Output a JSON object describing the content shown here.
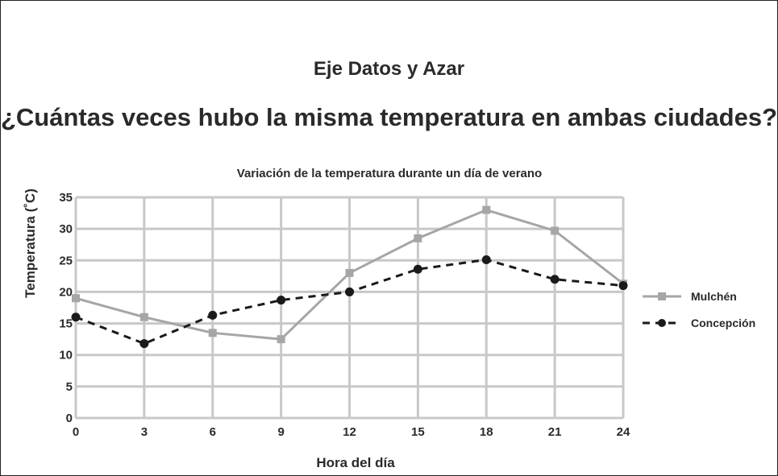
{
  "page": {
    "subtitle": "Eje Datos y Azar",
    "question": "¿Cuántas veces hubo la misma temperatura en ambas ciudades?"
  },
  "chart_data": {
    "type": "line",
    "title": "Variación de la temperatura durante un día de verano",
    "xlabel": "Hora del día",
    "ylabel": "Temperatura (˚C)",
    "x": [
      0,
      3,
      6,
      9,
      12,
      15,
      18,
      21,
      24
    ],
    "xticks": [
      "0",
      "3",
      "6",
      "9",
      "12",
      "15",
      "18",
      "21",
      "24"
    ],
    "yticks": [
      "0",
      "5",
      "10",
      "15",
      "20",
      "25",
      "30",
      "35"
    ],
    "xlim": [
      0,
      24
    ],
    "ylim": [
      0,
      35
    ],
    "grid": true,
    "legend_position": "right",
    "series": [
      {
        "name": "Mulchén",
        "values": [
          19,
          16,
          13.5,
          12.5,
          23,
          28.5,
          33,
          29.7,
          21.3
        ],
        "color": "#a6a6a6",
        "marker": "square",
        "line_style": "solid"
      },
      {
        "name": "Concepción",
        "values": [
          16,
          11.8,
          16.3,
          18.7,
          20,
          23.6,
          25.1,
          22,
          21
        ],
        "color": "#1a1a1a",
        "marker": "circle",
        "line_style": "dashed"
      }
    ]
  }
}
